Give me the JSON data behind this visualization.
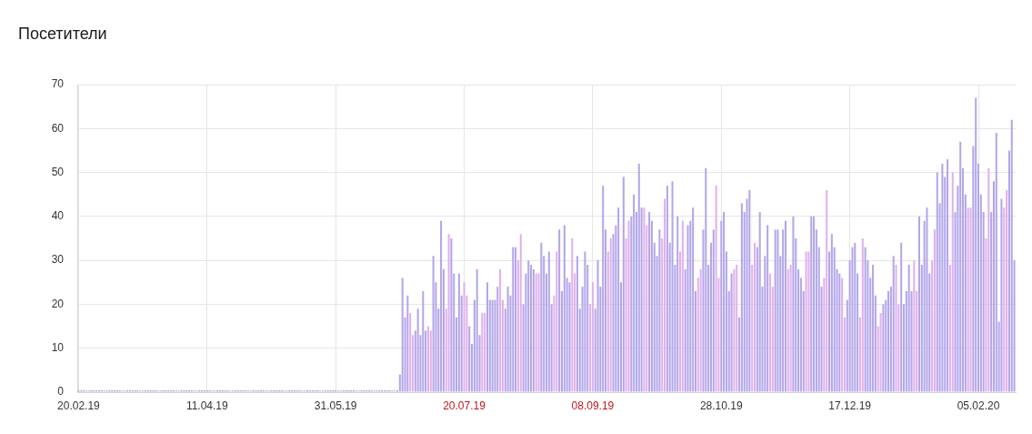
{
  "chart_data": {
    "type": "bar",
    "title": "Посетители",
    "x": [
      "2019-02-20",
      "2019-02-21",
      "2019-02-22",
      "2019-02-23",
      "2019-02-24",
      "2019-02-25",
      "2019-02-26",
      "2019-02-27",
      "2019-02-28",
      "2019-03-01",
      "2019-03-02",
      "2019-03-03",
      "2019-03-04",
      "2019-03-05",
      "2019-03-06",
      "2019-03-07",
      "2019-03-08",
      "2019-03-09",
      "2019-03-10",
      "2019-03-11",
      "2019-03-12",
      "2019-03-13",
      "2019-03-14",
      "2019-03-15",
      "2019-03-16",
      "2019-03-17",
      "2019-03-18",
      "2019-03-19",
      "2019-03-20",
      "2019-03-21",
      "2019-03-22",
      "2019-03-23",
      "2019-03-24",
      "2019-03-25",
      "2019-03-26",
      "2019-03-27",
      "2019-03-28",
      "2019-03-29",
      "2019-03-30",
      "2019-03-31",
      "2019-04-01",
      "2019-04-02",
      "2019-04-03",
      "2019-04-04",
      "2019-04-05",
      "2019-04-06",
      "2019-04-07",
      "2019-04-08",
      "2019-04-09",
      "2019-04-10",
      "2019-04-11",
      "2019-04-12",
      "2019-04-13",
      "2019-04-14",
      "2019-04-15",
      "2019-04-16",
      "2019-04-17",
      "2019-04-18",
      "2019-04-19",
      "2019-04-20",
      "2019-04-21",
      "2019-04-22",
      "2019-04-23",
      "2019-04-24",
      "2019-04-25",
      "2019-04-26",
      "2019-04-27",
      "2019-04-28",
      "2019-04-29",
      "2019-04-30",
      "2019-05-01",
      "2019-05-02",
      "2019-05-03",
      "2019-05-04",
      "2019-05-05",
      "2019-05-06",
      "2019-05-07",
      "2019-05-08",
      "2019-05-09",
      "2019-05-10",
      "2019-05-11",
      "2019-05-12",
      "2019-05-13",
      "2019-05-14",
      "2019-05-15",
      "2019-05-16",
      "2019-05-17",
      "2019-05-18",
      "2019-05-19",
      "2019-05-20",
      "2019-05-21",
      "2019-05-22",
      "2019-05-23",
      "2019-05-24",
      "2019-05-25",
      "2019-05-26",
      "2019-05-27",
      "2019-05-28",
      "2019-05-29",
      "2019-05-30",
      "2019-05-31",
      "2019-06-01",
      "2019-06-02",
      "2019-06-03",
      "2019-06-04",
      "2019-06-05",
      "2019-06-06",
      "2019-06-07",
      "2019-06-08",
      "2019-06-09",
      "2019-06-10",
      "2019-06-11",
      "2019-06-12",
      "2019-06-13",
      "2019-06-14",
      "2019-06-15",
      "2019-06-16",
      "2019-06-17",
      "2019-06-18",
      "2019-06-19",
      "2019-06-20",
      "2019-06-21",
      "2019-06-22",
      "2019-06-23",
      "2019-06-24",
      "2019-06-25",
      "2019-06-26",
      "2019-06-27",
      "2019-06-28",
      "2019-06-29",
      "2019-06-30",
      "2019-07-01",
      "2019-07-02",
      "2019-07-03",
      "2019-07-04",
      "2019-07-05",
      "2019-07-06",
      "2019-07-07",
      "2019-07-08",
      "2019-07-09",
      "2019-07-10",
      "2019-07-11",
      "2019-07-12",
      "2019-07-13",
      "2019-07-14",
      "2019-07-15",
      "2019-07-16",
      "2019-07-17",
      "2019-07-18",
      "2019-07-19",
      "2019-07-20",
      "2019-07-21",
      "2019-07-22",
      "2019-07-23",
      "2019-07-24",
      "2019-07-25",
      "2019-07-26",
      "2019-07-27",
      "2019-07-28",
      "2019-07-29",
      "2019-07-30",
      "2019-07-31",
      "2019-08-01",
      "2019-08-02",
      "2019-08-03",
      "2019-08-04",
      "2019-08-05",
      "2019-08-06",
      "2019-08-07",
      "2019-08-08",
      "2019-08-09",
      "2019-08-10",
      "2019-08-11",
      "2019-08-12",
      "2019-08-13",
      "2019-08-14",
      "2019-08-15",
      "2019-08-16",
      "2019-08-17",
      "2019-08-18",
      "2019-08-19",
      "2019-08-20",
      "2019-08-21",
      "2019-08-22",
      "2019-08-23",
      "2019-08-24",
      "2019-08-25",
      "2019-08-26",
      "2019-08-27",
      "2019-08-28",
      "2019-08-29",
      "2019-08-30",
      "2019-08-31",
      "2019-09-01",
      "2019-09-02",
      "2019-09-03",
      "2019-09-04",
      "2019-09-05",
      "2019-09-06",
      "2019-09-07",
      "2019-09-08",
      "2019-09-09",
      "2019-09-10",
      "2019-09-11",
      "2019-09-12",
      "2019-09-13",
      "2019-09-14",
      "2019-09-15",
      "2019-09-16",
      "2019-09-17",
      "2019-09-18",
      "2019-09-19",
      "2019-09-20",
      "2019-09-21",
      "2019-09-22",
      "2019-09-23",
      "2019-09-24",
      "2019-09-25",
      "2019-09-26",
      "2019-09-27",
      "2019-09-28",
      "2019-09-29",
      "2019-09-30",
      "2019-10-01",
      "2019-10-02",
      "2019-10-03",
      "2019-10-04",
      "2019-10-05",
      "2019-10-06",
      "2019-10-07",
      "2019-10-08",
      "2019-10-09",
      "2019-10-10",
      "2019-10-11",
      "2019-10-12",
      "2019-10-13",
      "2019-10-14",
      "2019-10-15",
      "2019-10-16",
      "2019-10-17",
      "2019-10-18",
      "2019-10-19",
      "2019-10-20",
      "2019-10-21",
      "2019-10-22",
      "2019-10-23",
      "2019-10-24",
      "2019-10-25",
      "2019-10-26",
      "2019-10-27",
      "2019-10-28",
      "2019-10-29",
      "2019-10-30",
      "2019-10-31",
      "2019-11-01",
      "2019-11-02",
      "2019-11-03",
      "2019-11-04",
      "2019-11-05",
      "2019-11-06",
      "2019-11-07",
      "2019-11-08",
      "2019-11-09",
      "2019-11-10",
      "2019-11-11",
      "2019-11-12",
      "2019-11-13",
      "2019-11-14",
      "2019-11-15",
      "2019-11-16",
      "2019-11-17",
      "2019-11-18",
      "2019-11-19",
      "2019-11-20",
      "2019-11-21",
      "2019-11-22",
      "2019-11-23",
      "2019-11-24",
      "2019-11-25",
      "2019-11-26",
      "2019-11-27",
      "2019-11-28",
      "2019-11-29",
      "2019-11-30",
      "2019-12-01",
      "2019-12-02",
      "2019-12-03",
      "2019-12-04",
      "2019-12-05",
      "2019-12-06",
      "2019-12-07",
      "2019-12-08",
      "2019-12-09",
      "2019-12-10",
      "2019-12-11",
      "2019-12-12",
      "2019-12-13",
      "2019-12-14",
      "2019-12-15",
      "2019-12-16",
      "2019-12-17",
      "2019-12-18",
      "2019-12-19",
      "2019-12-20",
      "2019-12-21",
      "2019-12-22",
      "2019-12-23",
      "2019-12-24",
      "2019-12-25",
      "2019-12-26",
      "2019-12-27",
      "2019-12-28",
      "2019-12-29",
      "2019-12-30",
      "2019-12-31",
      "2020-01-01",
      "2020-01-02",
      "2020-01-03",
      "2020-01-04",
      "2020-01-05",
      "2020-01-06",
      "2020-01-07",
      "2020-01-08",
      "2020-01-09",
      "2020-01-10",
      "2020-01-11",
      "2020-01-12",
      "2020-01-13",
      "2020-01-14",
      "2020-01-15",
      "2020-01-16",
      "2020-01-17",
      "2020-01-18",
      "2020-01-19",
      "2020-01-20",
      "2020-01-21",
      "2020-01-22",
      "2020-01-23",
      "2020-01-24",
      "2020-01-25",
      "2020-01-26",
      "2020-01-27",
      "2020-01-28",
      "2020-01-29",
      "2020-01-30",
      "2020-01-31",
      "2020-02-01",
      "2020-02-02",
      "2020-02-03",
      "2020-02-04",
      "2020-02-05",
      "2020-02-06",
      "2020-02-07",
      "2020-02-08",
      "2020-02-09",
      "2020-02-10",
      "2020-02-11",
      "2020-02-12",
      "2020-02-13",
      "2020-02-14",
      "2020-02-15",
      "2020-02-16",
      "2020-02-17",
      "2020-02-18",
      "2020-02-19"
    ],
    "values": [
      0,
      0,
      0,
      0,
      0,
      0,
      0,
      0,
      0,
      0,
      0,
      0,
      0,
      0,
      0,
      0,
      0,
      0,
      0,
      0,
      0,
      0,
      0,
      0,
      0,
      0,
      0,
      0,
      0,
      0,
      0,
      0,
      0,
      0,
      0,
      0,
      0,
      0,
      0,
      0,
      0,
      0,
      0,
      0,
      0,
      0,
      0,
      0,
      0,
      0,
      0,
      0,
      0,
      0,
      0,
      0,
      0,
      0,
      0,
      0,
      0,
      0,
      0,
      0,
      0,
      0,
      0,
      0,
      0,
      0,
      0,
      0,
      0,
      0,
      0,
      0,
      0,
      0,
      0,
      0,
      0,
      0,
      0,
      0,
      0,
      0,
      0,
      0,
      0,
      0,
      0,
      0,
      0,
      0,
      0,
      0,
      0,
      0,
      0,
      0,
      0,
      0,
      0,
      0,
      0,
      0,
      0,
      0,
      0,
      0,
      0,
      0,
      0,
      0,
      0,
      0,
      0,
      0,
      0,
      0,
      0,
      0,
      0,
      0,
      0,
      4,
      26,
      17,
      22,
      18,
      13,
      14,
      19,
      13,
      23,
      14,
      15,
      14,
      31,
      25,
      19,
      39,
      28,
      19,
      36,
      35,
      27,
      17,
      27,
      22,
      25,
      22,
      15,
      11,
      21,
      28,
      13,
      18,
      18,
      25,
      21,
      21,
      21,
      24,
      28,
      21,
      19,
      24,
      22,
      33,
      33,
      30,
      36,
      20,
      27,
      30,
      29,
      28,
      27,
      27,
      34,
      31,
      27,
      32,
      20,
      22,
      32,
      37,
      23,
      38,
      26,
      25,
      35,
      27,
      31,
      19,
      24,
      32,
      29,
      20,
      25,
      19,
      30,
      24,
      47,
      37,
      32,
      35,
      36,
      38,
      42,
      25,
      49,
      35,
      39,
      40,
      45,
      41,
      52,
      42,
      42,
      38,
      41,
      39,
      34,
      31,
      37,
      35,
      44,
      47,
      34,
      48,
      29,
      40,
      32,
      39,
      28,
      38,
      39,
      42,
      23,
      26,
      28,
      37,
      51,
      29,
      34,
      37,
      47,
      26,
      39,
      41,
      32,
      23,
      27,
      28,
      29,
      17,
      43,
      41,
      44,
      46,
      29,
      34,
      33,
      41,
      24,
      31,
      38,
      27,
      24,
      37,
      37,
      31,
      37,
      39,
      28,
      29,
      40,
      35,
      28,
      26,
      23,
      32,
      32,
      40,
      40,
      37,
      33,
      24,
      26,
      46,
      32,
      36,
      33,
      28,
      27,
      26,
      17,
      21,
      30,
      33,
      34,
      27,
      17,
      35,
      33,
      30,
      26,
      29,
      22,
      15,
      18,
      20,
      21,
      23,
      24,
      31,
      29,
      20,
      34,
      20,
      23,
      29,
      23,
      30,
      23,
      40,
      29,
      39,
      42,
      27,
      30,
      37,
      50,
      43,
      52,
      49,
      53,
      29,
      50,
      41,
      47,
      57,
      51,
      45,
      42,
      42,
      56,
      67,
      52,
      45,
      41,
      35,
      51,
      41,
      48,
      59,
      16,
      44,
      42,
      46,
      55,
      62,
      30
    ],
    "colors": [
      "#b3a6ea",
      "#b3a6ea",
      "#b3a6ea",
      "#e1b0ec",
      "#e1b0ec",
      "#b3a6ea",
      "#b3a6ea",
      "#b3a6ea",
      "#b3a6ea",
      "#b3a6ea",
      "#e1b0ec",
      "#e1b0ec",
      "#b3a6ea",
      "#b3a6ea",
      "#b3a6ea",
      "#b3a6ea",
      "#b3a6ea",
      "#e1b0ec",
      "#e1b0ec",
      "#b3a6ea",
      "#b3a6ea",
      "#b3a6ea",
      "#b3a6ea",
      "#b3a6ea",
      "#e1b0ec",
      "#e1b0ec",
      "#b3a6ea",
      "#b3a6ea",
      "#b3a6ea",
      "#b3a6ea",
      "#b3a6ea",
      "#e1b0ec",
      "#e1b0ec",
      "#b3a6ea",
      "#b3a6ea",
      "#b3a6ea",
      "#b3a6ea",
      "#b3a6ea",
      "#e1b0ec",
      "#e1b0ec",
      "#b3a6ea",
      "#b3a6ea",
      "#b3a6ea",
      "#b3a6ea",
      "#b3a6ea",
      "#e1b0ec",
      "#e1b0ec",
      "#b3a6ea",
      "#b3a6ea",
      "#b3a6ea",
      "#b3a6ea",
      "#b3a6ea",
      "#e1b0ec",
      "#e1b0ec",
      "#b3a6ea",
      "#b3a6ea",
      "#b3a6ea",
      "#b3a6ea",
      "#b3a6ea",
      "#e1b0ec",
      "#e1b0ec",
      "#b3a6ea",
      "#b3a6ea",
      "#b3a6ea",
      "#b3a6ea",
      "#b3a6ea",
      "#e1b0ec",
      "#e1b0ec",
      "#b3a6ea",
      "#b3a6ea",
      "#b3a6ea",
      "#b3a6ea",
      "#b3a6ea",
      "#e1b0ec",
      "#e1b0ec",
      "#b3a6ea",
      "#b3a6ea",
      "#b3a6ea",
      "#b3a6ea",
      "#b3a6ea",
      "#e1b0ec",
      "#e1b0ec",
      "#b3a6ea",
      "#b3a6ea",
      "#b3a6ea",
      "#b3a6ea",
      "#b3a6ea",
      "#e1b0ec",
      "#e1b0ec",
      "#b3a6ea",
      "#b3a6ea",
      "#b3a6ea",
      "#b3a6ea",
      "#b3a6ea",
      "#e1b0ec",
      "#e1b0ec",
      "#b3a6ea",
      "#b3a6ea",
      "#b3a6ea",
      "#b3a6ea",
      "#b3a6ea",
      "#e1b0ec",
      "#e1b0ec",
      "#b3a6ea",
      "#b3a6ea",
      "#b3a6ea",
      "#b3a6ea",
      "#b3a6ea",
      "#e1b0ec",
      "#e1b0ec",
      "#b3a6ea",
      "#b3a6ea",
      "#b3a6ea",
      "#b3a6ea",
      "#b3a6ea",
      "#e1b0ec",
      "#e1b0ec",
      "#b3a6ea",
      "#b3a6ea",
      "#b3a6ea",
      "#b3a6ea",
      "#b3a6ea",
      "#e1b0ec",
      "#e1b0ec",
      "#b3a6ea",
      "#b3a6ea",
      "#b3a6ea",
      "#b3a6ea",
      "#b3a6ea",
      "#e1b0ec",
      "#e1b0ec",
      "#b3a6ea",
      "#b3a6ea",
      "#b3a6ea",
      "#b3a6ea",
      "#b3a6ea",
      "#e1b0ec",
      "#e1b0ec",
      "#b3a6ea",
      "#b3a6ea",
      "#b3a6ea",
      "#b3a6ea",
      "#b3a6ea",
      "#e1b0ec",
      "#e1b0ec",
      "#b3a6ea",
      "#b3a6ea",
      "#b3a6ea",
      "#b3a6ea",
      "#b3a6ea",
      "#e1b0ec",
      "#e1b0ec",
      "#b3a6ea",
      "#b3a6ea",
      "#b3a6ea",
      "#b3a6ea",
      "#b3a6ea",
      "#e1b0ec",
      "#e1b0ec",
      "#b3a6ea",
      "#b3a6ea",
      "#b3a6ea",
      "#b3a6ea",
      "#b3a6ea",
      "#e1b0ec",
      "#e1b0ec",
      "#b3a6ea",
      "#b3a6ea",
      "#b3a6ea",
      "#b3a6ea",
      "#b3a6ea",
      "#e1b0ec",
      "#e1b0ec",
      "#b3a6ea",
      "#b3a6ea",
      "#b3a6ea",
      "#b3a6ea",
      "#b3a6ea",
      "#e1b0ec",
      "#e1b0ec",
      "#b3a6ea",
      "#b3a6ea",
      "#b3a6ea",
      "#b3a6ea",
      "#b3a6ea",
      "#e1b0ec",
      "#e1b0ec",
      "#b3a6ea",
      "#b3a6ea",
      "#b3a6ea",
      "#b3a6ea",
      "#b3a6ea",
      "#e1b0ec",
      "#e1b0ec",
      "#b3a6ea",
      "#b3a6ea",
      "#b3a6ea",
      "#b3a6ea",
      "#b3a6ea",
      "#e1b0ec",
      "#e1b0ec",
      "#b3a6ea",
      "#b3a6ea",
      "#b3a6ea",
      "#b3a6ea",
      "#b3a6ea",
      "#e1b0ec",
      "#e1b0ec",
      "#b3a6ea",
      "#b3a6ea",
      "#b3a6ea",
      "#b3a6ea",
      "#b3a6ea",
      "#e1b0ec",
      "#e1b0ec",
      "#b3a6ea",
      "#b3a6ea",
      "#b3a6ea",
      "#b3a6ea",
      "#b3a6ea",
      "#e1b0ec",
      "#e1b0ec",
      "#b3a6ea",
      "#b3a6ea",
      "#b3a6ea",
      "#b3a6ea",
      "#b3a6ea",
      "#e1b0ec",
      "#e1b0ec",
      "#b3a6ea",
      "#b3a6ea",
      "#b3a6ea",
      "#b3a6ea",
      "#b3a6ea",
      "#e1b0ec",
      "#e1b0ec",
      "#b3a6ea",
      "#b3a6ea",
      "#b3a6ea",
      "#b3a6ea",
      "#b3a6ea",
      "#e1b0ec",
      "#e1b0ec",
      "#b3a6ea",
      "#b3a6ea",
      "#b3a6ea",
      "#b3a6ea",
      "#b3a6ea",
      "#e1b0ec",
      "#e1b0ec",
      "#b3a6ea",
      "#b3a6ea",
      "#b3a6ea",
      "#b3a6ea",
      "#b3a6ea",
      "#e1b0ec",
      "#e1b0ec",
      "#b3a6ea",
      "#b3a6ea",
      "#b3a6ea",
      "#b3a6ea",
      "#b3a6ea",
      "#e1b0ec",
      "#e1b0ec",
      "#b3a6ea",
      "#b3a6ea",
      "#b3a6ea",
      "#b3a6ea",
      "#b3a6ea",
      "#e1b0ec",
      "#e1b0ec",
      "#b3a6ea",
      "#b3a6ea",
      "#b3a6ea",
      "#b3a6ea",
      "#b3a6ea",
      "#e1b0ec",
      "#e1b0ec",
      "#b3a6ea",
      "#b3a6ea",
      "#b3a6ea",
      "#b3a6ea",
      "#b3a6ea",
      "#e1b0ec",
      "#e1b0ec",
      "#b3a6ea",
      "#b3a6ea",
      "#b3a6ea",
      "#b3a6ea",
      "#b3a6ea",
      "#e1b0ec",
      "#e1b0ec",
      "#b3a6ea",
      "#b3a6ea",
      "#b3a6ea",
      "#b3a6ea",
      "#b3a6ea",
      "#e1b0ec",
      "#e1b0ec",
      "#b3a6ea",
      "#b3a6ea",
      "#b3a6ea",
      "#b3a6ea",
      "#b3a6ea",
      "#e1b0ec",
      "#e1b0ec",
      "#b3a6ea",
      "#b3a6ea",
      "#b3a6ea",
      "#b3a6ea",
      "#b3a6ea",
      "#e1b0ec",
      "#e1b0ec",
      "#b3a6ea",
      "#b3a6ea",
      "#b3a6ea",
      "#b3a6ea",
      "#b3a6ea",
      "#e1b0ec",
      "#e1b0ec",
      "#b3a6ea",
      "#b3a6ea",
      "#b3a6ea",
      "#b3a6ea",
      "#b3a6ea",
      "#e1b0ec",
      "#e1b0ec",
      "#b3a6ea",
      "#b3a6ea",
      "#b3a6ea",
      "#b3a6ea",
      "#b3a6ea",
      "#e1b0ec",
      "#e1b0ec",
      "#b3a6ea",
      "#b3a6ea",
      "#b3a6ea",
      "#b3a6ea",
      "#b3a6ea",
      "#e1b0ec",
      "#e1b0ec",
      "#b3a6ea",
      "#b3a6ea",
      "#b3a6ea",
      "#b3a6ea",
      "#b3a6ea",
      "#e1b0ec",
      "#e1b0ec",
      "#b3a6ea",
      "#b3a6ea",
      "#b3a6ea",
      "#b3a6ea",
      "#b3a6ea",
      "#e1b0ec",
      "#e1b0ec",
      "#b3a6ea",
      "#b3a6ea",
      "#b3a6ea",
      "#b3a6ea",
      "#b3a6ea",
      "#e1b0ec",
      "#e1b0ec",
      "#b3a6ea",
      "#b3a6ea",
      "#b3a6ea"
    ],
    "xlim": [
      "2019-02-19T12:00",
      "2020-02-19T12:00"
    ],
    "xticks": [
      {
        "value": "2019-02-20",
        "label": "20.02.19"
      },
      {
        "value": "2019-04-11",
        "label": "11.04.19"
      },
      {
        "value": "2019-05-31",
        "label": "31.05.19"
      },
      {
        "value": "2019-07-20",
        "label": "20.07.19"
      },
      {
        "value": "2019-09-08",
        "label": "08.09.19"
      },
      {
        "value": "2019-10-28",
        "label": "28.10.19"
      },
      {
        "value": "2019-12-17",
        "label": "17.12.19"
      },
      {
        "value": "2020-02-05",
        "label": "05.02.20"
      }
    ],
    "ylim": [
      0,
      70
    ],
    "yticks": [
      0,
      10,
      20,
      30,
      40,
      50,
      60,
      70
    ],
    "grid": true
  }
}
